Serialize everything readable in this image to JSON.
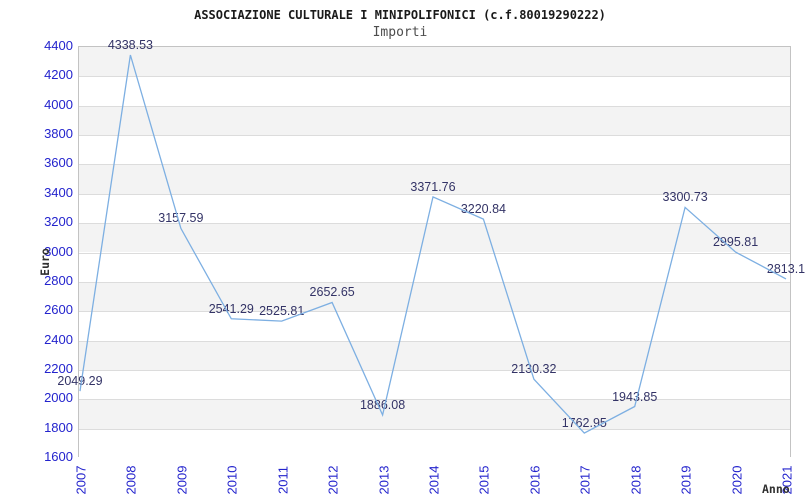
{
  "header": {
    "title": "ASSOCIAZIONE CULTURALE I MINIPOLIFONICI (c.f.80019290222)",
    "subtitle": "Importi"
  },
  "chart_data": {
    "type": "line",
    "title": "ASSOCIAZIONE CULTURALE I MINIPOLIFONICI (c.f.80019290222)",
    "subtitle": "Importi",
    "xlabel": "Anno",
    "ylabel": "Euro",
    "x": [
      2007,
      2008,
      2009,
      2010,
      2011,
      2012,
      2013,
      2014,
      2015,
      2016,
      2017,
      2018,
      2019,
      2020,
      2021
    ],
    "values": [
      2049.29,
      4338.53,
      3157.59,
      2541.29,
      2525.81,
      2652.65,
      1886.08,
      3371.76,
      3220.84,
      2130.32,
      1762.95,
      1943.85,
      3300.73,
      2995.81,
      2813.1
    ],
    "point_labels": [
      "2049.29",
      "4338.53",
      "3157.59",
      "2541.29",
      "2525.81",
      "2652.65",
      "1886.08",
      "3371.76",
      "3220.84",
      "2130.32",
      "1762.95",
      "1943.85",
      "3300.73",
      "2995.81",
      "2813.1"
    ],
    "ylim": [
      1600,
      4400
    ],
    "ytick_step": 200,
    "grid": "horizontal-bands",
    "legend": "none",
    "colors": {
      "line": "#7dafe2",
      "tick_label": "#2323cd",
      "point_label": "#333366",
      "band_fill": "#f3f3f3",
      "grid_line": "#dcdcdc",
      "plot_border": "#c3c3c3",
      "title": "#1a1a1a",
      "subtitle": "#4d4d4d",
      "axis_title": "#303030"
    }
  }
}
